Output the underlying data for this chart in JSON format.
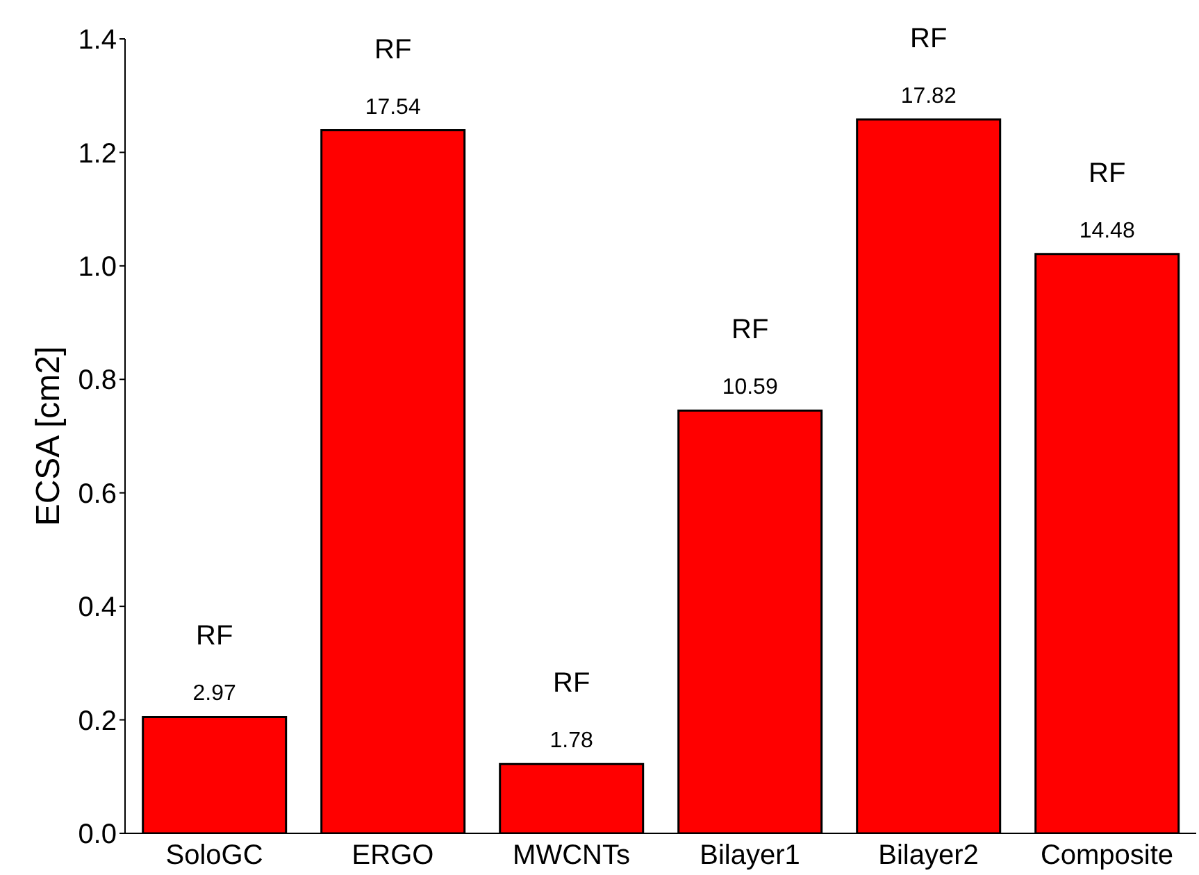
{
  "chart_data": {
    "type": "bar",
    "ylabel": "ECSA [cm2]",
    "categories": [
      "SoloGC",
      "ERGO",
      "MWCNTs",
      "Bilayer1",
      "Bilayer2",
      "Composite"
    ],
    "values": [
      0.205,
      1.239,
      0.122,
      0.745,
      1.258,
      1.021
    ],
    "value_labels": [
      "RF\n2.97",
      "RF\n17.54",
      "RF\n1.78",
      "RF\n10.59",
      "RF\n17.82",
      "RF\n14.48"
    ],
    "color": "#ff0000",
    "ylim": [
      0,
      1.4
    ],
    "yticks": [
      {
        "value": 0,
        "label": "0.0"
      },
      0.2,
      0.4,
      0.6,
      0.8,
      {
        "value": 1,
        "label": "1.0"
      },
      1.2,
      1.4
    ],
    "grid": false,
    "legend": false
  }
}
